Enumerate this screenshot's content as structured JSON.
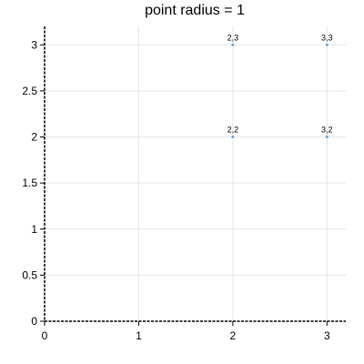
{
  "chart_data": {
    "type": "scatter",
    "title": "point radius = 1",
    "xlabel": "",
    "ylabel": "",
    "xlim": [
      0,
      3.2
    ],
    "ylim": [
      0,
      3.2
    ],
    "x_ticks": [
      "0",
      "1",
      "2",
      "3"
    ],
    "y_ticks": [
      "0",
      "0.5",
      "1",
      "1.5",
      "2",
      "2.5",
      "3"
    ],
    "grid": true,
    "series": [
      {
        "points": [
          {
            "x": 2,
            "y": 3,
            "label": "2,3"
          },
          {
            "x": 3,
            "y": 3,
            "label": "3,3"
          },
          {
            "x": 2,
            "y": 2,
            "label": "2,2"
          },
          {
            "x": 3,
            "y": 2,
            "label": "3,2"
          }
        ]
      }
    ]
  },
  "colors": {
    "point": "#6a9fd8",
    "grid": "#e6e6e6",
    "axis": "#000000"
  }
}
